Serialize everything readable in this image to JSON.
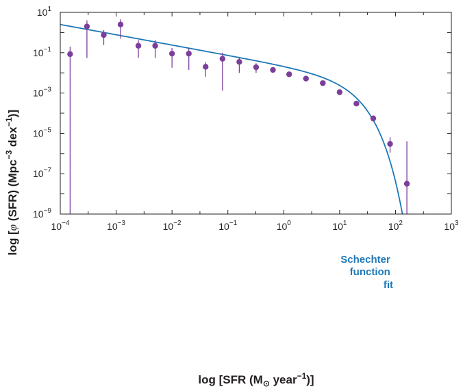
{
  "chart_data": {
    "type": "scatter",
    "x_scale": "log",
    "y_scale": "log",
    "xlim": [
      0.0001,
      1000
    ],
    "ylim": [
      1e-09,
      10
    ],
    "grid": false,
    "x_ticks": [
      {
        "base": "10",
        "exp": "−4",
        "value": 0.0001
      },
      {
        "base": "10",
        "exp": "−3",
        "value": 0.001
      },
      {
        "base": "10",
        "exp": "−2",
        "value": 0.01
      },
      {
        "base": "10",
        "exp": "−1",
        "value": 0.1
      },
      {
        "base": "10",
        "exp": "0",
        "value": 1
      },
      {
        "base": "10",
        "exp": "1",
        "value": 10
      },
      {
        "base": "10",
        "exp": "2",
        "value": 100
      },
      {
        "base": "10",
        "exp": "3",
        "value": 1000
      }
    ],
    "y_ticks": [
      {
        "base": "10",
        "exp": "1",
        "value": 10
      },
      {
        "base": "10",
        "exp": "−1",
        "value": 0.1
      },
      {
        "base": "10",
        "exp": "−3",
        "value": 0.001
      },
      {
        "base": "10",
        "exp": "−5",
        "value": 1e-05
      },
      {
        "base": "10",
        "exp": "−7",
        "value": 1e-07
      },
      {
        "base": "10",
        "exp": "−9",
        "value": 1e-09
      }
    ],
    "xlabel": {
      "prefix": "log [SFR (M",
      "sub": "⊙",
      "mid": " year",
      "sup": "−1",
      "suffix": ")]"
    },
    "ylabel": {
      "prefix": "log [",
      "phi": "φ",
      "mid": " (SFR) (Mpc",
      "sup1": "−3",
      "mid2": " dex",
      "sup2": "−1",
      "suffix": ")]"
    },
    "series": [
      {
        "type": "scatter",
        "color": "#7b3f9a",
        "points": [
          {
            "x": 0.00015,
            "y": 0.085,
            "ylo": 1e-09,
            "yhi": 0.2
          },
          {
            "x": 0.0003,
            "y": 2.0,
            "ylo": 0.055,
            "yhi": 4.0
          },
          {
            "x": 0.0006,
            "y": 0.75,
            "ylo": 0.24,
            "yhi": 1.3
          },
          {
            "x": 0.0012,
            "y": 2.5,
            "ylo": 0.5,
            "yhi": 4.5
          },
          {
            "x": 0.0025,
            "y": 0.22,
            "ylo": 0.055,
            "yhi": 0.42
          },
          {
            "x": 0.005,
            "y": 0.22,
            "ylo": 0.055,
            "yhi": 0.42
          },
          {
            "x": 0.01,
            "y": 0.09,
            "ylo": 0.018,
            "yhi": 0.17
          },
          {
            "x": 0.02,
            "y": 0.09,
            "ylo": 0.014,
            "yhi": 0.17
          },
          {
            "x": 0.04,
            "y": 0.02,
            "ylo": 0.0065,
            "yhi": 0.034
          },
          {
            "x": 0.08,
            "y": 0.05,
            "ylo": 0.0013,
            "yhi": 0.1
          },
          {
            "x": 0.16,
            "y": 0.035,
            "ylo": 0.01,
            "yhi": 0.057
          },
          {
            "x": 0.32,
            "y": 0.019,
            "ylo": 0.01,
            "yhi": 0.03
          },
          {
            "x": 0.64,
            "y": 0.014
          },
          {
            "x": 1.25,
            "y": 0.0085
          },
          {
            "x": 2.5,
            "y": 0.0052
          },
          {
            "x": 5,
            "y": 0.0031
          },
          {
            "x": 10,
            "y": 0.0011
          },
          {
            "x": 20,
            "y": 0.0003
          },
          {
            "x": 40,
            "y": 5.5e-05
          },
          {
            "x": 80,
            "y": 3e-06,
            "ylo": 1.1e-06,
            "yhi": 6.3e-06
          },
          {
            "x": 160,
            "y": 3.2e-08,
            "ylo": 1e-09,
            "yhi": 4e-06
          }
        ]
      },
      {
        "type": "line",
        "color": "#1d78b8",
        "schechter": {
          "phi_star": 0.0032,
          "alpha": -1.51,
          "sfr_star": 9.2
        }
      }
    ],
    "annotation": {
      "lines": [
        "Schechter",
        "function",
        "fit"
      ],
      "color": "#1d78b8"
    }
  }
}
